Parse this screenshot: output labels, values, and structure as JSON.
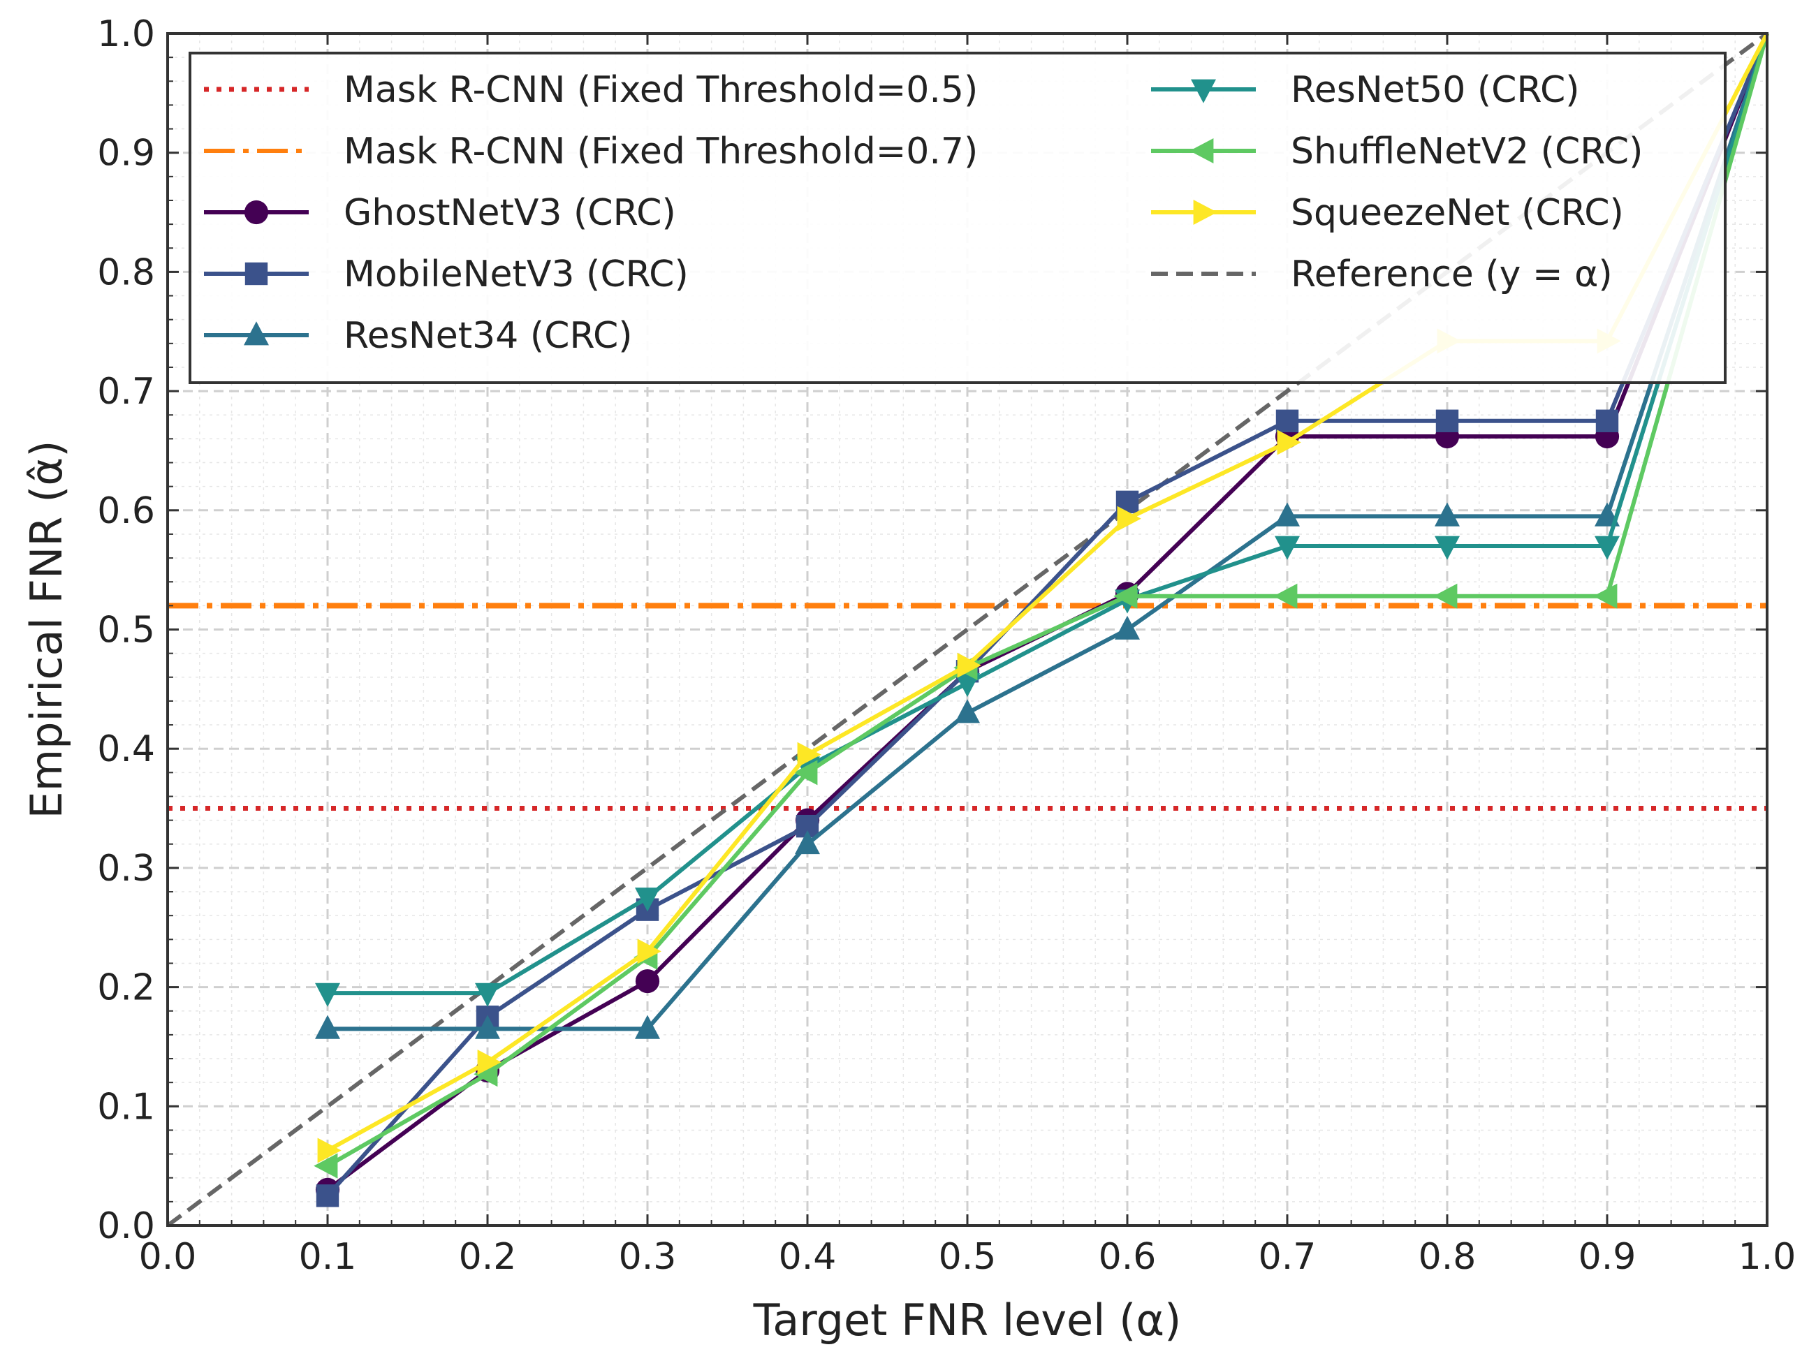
{
  "chart_data": {
    "type": "line",
    "title": "",
    "xlabel": "Target FNR level (α)",
    "ylabel": "Empirical FNR (α̂)",
    "xlim": [
      0.0,
      1.0
    ],
    "ylim": [
      0.0,
      1.0
    ],
    "xticks": [
      "0.0",
      "0.1",
      "0.2",
      "0.3",
      "0.4",
      "0.5",
      "0.6",
      "0.7",
      "0.8",
      "0.9",
      "1.0"
    ],
    "yticks": [
      "0.0",
      "0.1",
      "0.2",
      "0.3",
      "0.4",
      "0.5",
      "0.6",
      "0.7",
      "0.8",
      "0.9",
      "1.0"
    ],
    "grid": true,
    "legend_position": "top",
    "x": [
      0.1,
      0.2,
      0.3,
      0.4,
      0.5,
      0.6,
      0.7,
      0.8,
      0.9,
      1.0
    ],
    "hlines": [
      {
        "name": "Mask R-CNN (Fixed Threshold=0.5)",
        "value": 0.35,
        "color": "#d62728",
        "style": "dotted"
      },
      {
        "name": "Mask R-CNN (Fixed Threshold=0.7)",
        "value": 0.52,
        "color": "#ff7f0e",
        "style": "dashdot"
      }
    ],
    "series": [
      {
        "name": "GhostNetV3 (CRC)",
        "color": "#440154",
        "marker": "circle",
        "values": [
          0.03,
          0.13,
          0.205,
          0.34,
          0.465,
          0.53,
          0.662,
          0.662,
          0.662,
          1.0
        ]
      },
      {
        "name": "MobileNetV3 (CRC)",
        "color": "#3b528b",
        "marker": "square",
        "values": [
          0.025,
          0.175,
          0.265,
          0.335,
          0.465,
          0.607,
          0.675,
          0.675,
          0.675,
          1.0
        ]
      },
      {
        "name": "ResNet34 (CRC)",
        "color": "#2c728e",
        "marker": "triangle-up",
        "values": [
          0.165,
          0.165,
          0.165,
          0.32,
          0.43,
          0.5,
          0.595,
          0.595,
          0.595,
          1.0
        ]
      },
      {
        "name": "ResNet50 (CRC)",
        "color": "#21918c",
        "marker": "triangle-down",
        "values": [
          0.195,
          0.195,
          0.275,
          0.385,
          0.455,
          0.525,
          0.57,
          0.57,
          0.57,
          1.0
        ]
      },
      {
        "name": "ShuffleNetV2 (CRC)",
        "color": "#5ec962",
        "marker": "triangle-left",
        "values": [
          0.05,
          0.127,
          0.225,
          0.38,
          0.468,
          0.528,
          0.528,
          0.528,
          0.528,
          1.0
        ]
      },
      {
        "name": "SqueezeNet (CRC)",
        "color": "#fde725",
        "marker": "triangle-right",
        "values": [
          0.063,
          0.137,
          0.23,
          0.395,
          0.47,
          0.593,
          0.657,
          0.742,
          0.742,
          1.0
        ]
      }
    ],
    "reference": {
      "name": "Reference (y = α)",
      "color": "#666666",
      "style": "dashed",
      "x": [
        0.0,
        1.0
      ],
      "y": [
        0.0,
        1.0
      ]
    }
  }
}
